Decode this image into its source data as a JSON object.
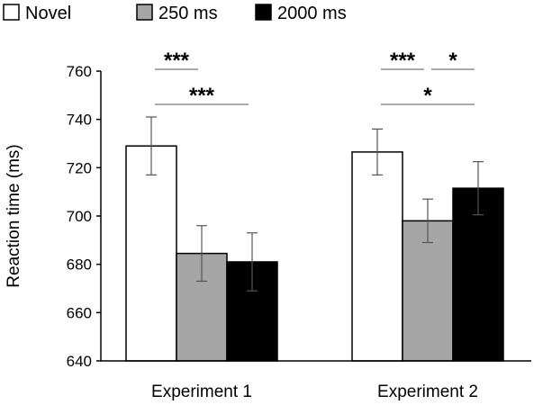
{
  "chart_data": {
    "type": "bar",
    "categories": [
      "Experiment 1",
      "Experiment 2"
    ],
    "series": [
      {
        "name": "Novel",
        "values": [
          729,
          726.5
        ],
        "errors": [
          12,
          9.5
        ],
        "color": "#ffffff"
      },
      {
        "name": "250 ms",
        "values": [
          684.5,
          698
        ],
        "errors": [
          11.5,
          9
        ],
        "color": "#a6a6a6"
      },
      {
        "name": "2000 ms",
        "values": [
          681,
          711.5
        ],
        "errors": [
          12,
          11
        ],
        "color": "#000000"
      }
    ],
    "title": "",
    "xlabel": "",
    "ylabel": "Reaction time (ms)",
    "ylim": [
      640,
      760
    ],
    "yticks": [
      640,
      660,
      680,
      700,
      720,
      740,
      760
    ],
    "legend_position": "top-left",
    "grid": false,
    "significance": [
      {
        "category": 0,
        "from": 0,
        "to": 1,
        "label": "***",
        "level": 2
      },
      {
        "category": 0,
        "from": 0,
        "to": 2,
        "label": "***",
        "level": 1
      },
      {
        "category": 1,
        "from": 0,
        "to": 1,
        "label": "***",
        "level": 2
      },
      {
        "category": 1,
        "from": 1,
        "to": 2,
        "label": "*",
        "level": 2
      },
      {
        "category": 1,
        "from": 0,
        "to": 2,
        "label": "*",
        "level": 1
      }
    ]
  }
}
